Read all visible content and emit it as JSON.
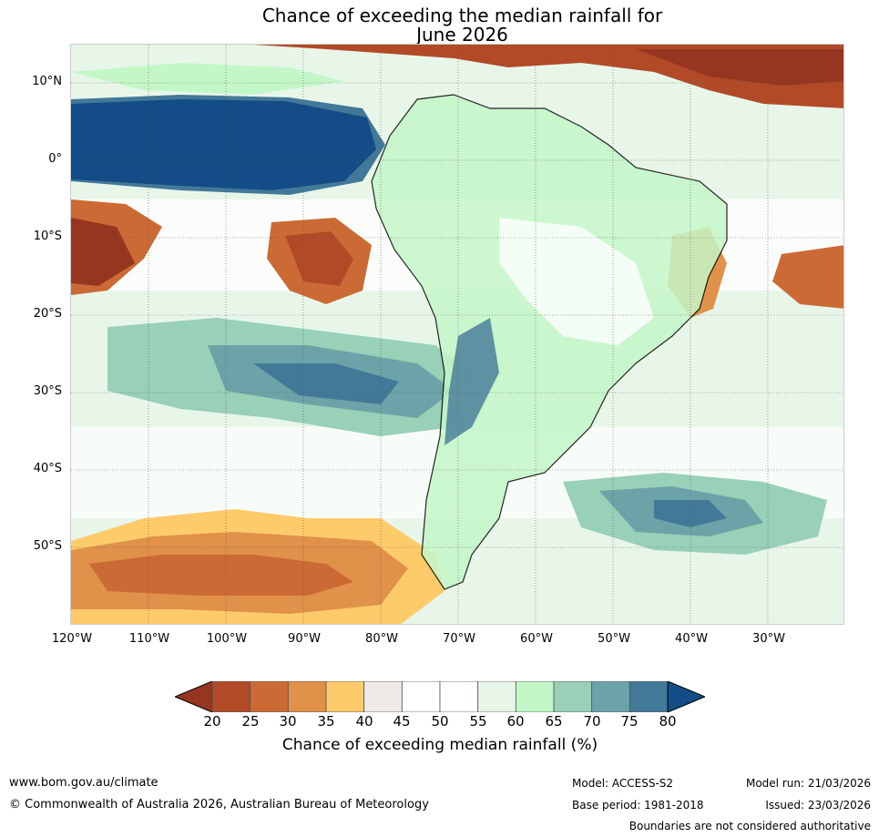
{
  "title": {
    "line1": "Chance of exceeding the median rainfall for",
    "line2": "June 2026"
  },
  "map": {
    "lat_labels": [
      "10°N",
      "0°",
      "10°S",
      "20°S",
      "30°S",
      "40°S",
      "50°S"
    ],
    "lon_labels": [
      "120°W",
      "110°W",
      "100°W",
      "90°W",
      "80°W",
      "70°W",
      "60°W",
      "50°W",
      "40°W",
      "30°W"
    ]
  },
  "colorbar": {
    "ticks": [
      "20",
      "25",
      "30",
      "35",
      "40",
      "45",
      "50",
      "55",
      "60",
      "65",
      "70",
      "75",
      "80"
    ],
    "colors": [
      "#963520",
      "#b24a28",
      "#cc6a35",
      "#e0914a",
      "#fecb6a",
      "#eeebe7",
      "#ffffff",
      "#ffffff",
      "#e8f6ea",
      "#c4f7c8",
      "#98d0b8",
      "#6ca3a8",
      "#437998",
      "#134c86"
    ],
    "label": "Chance of exceeding median rainfall (%)"
  },
  "footer": {
    "url": "www.bom.gov.au/climate",
    "copyright": "© Commonwealth of Australia 2026, Australian Bureau of Meteorology",
    "model": "Model: ACCESS-S2",
    "base_period": "Base period: 1981-2018",
    "model_run": "Model run: 21/03/2026",
    "issued": "Issued: 23/03/2026",
    "disclaimer": "Boundaries are not considered authoritative"
  }
}
